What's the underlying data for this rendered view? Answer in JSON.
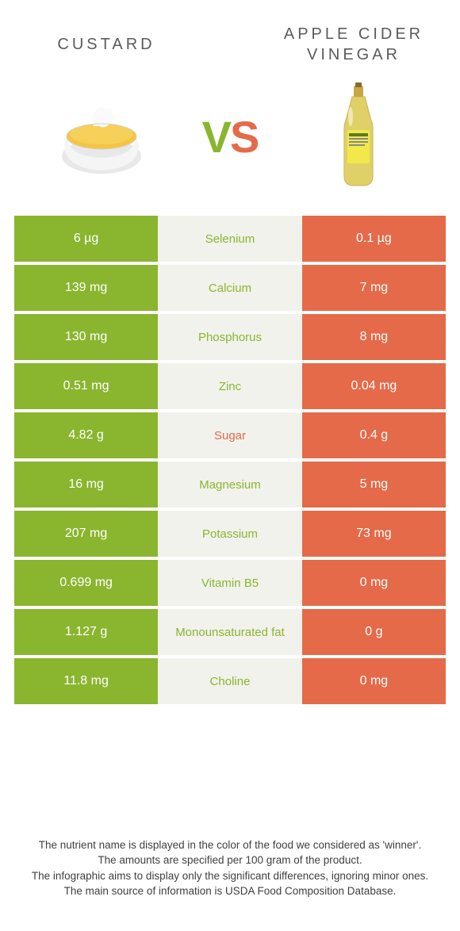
{
  "header": {
    "left_title": "Custard",
    "right_title": "Apple cider vinegar",
    "vs_v": "V",
    "vs_s": "S"
  },
  "colors": {
    "left_bg": "#8ab52f",
    "right_bg": "#e46a4a",
    "mid_bg": "#f2f2ec",
    "cell_text": "#ffffff",
    "title_text": "#5b5b5b",
    "footer_text": "#404040"
  },
  "table": {
    "rows": [
      {
        "left": "6 µg",
        "label": "Selenium",
        "right": "0.1 µg",
        "winner": "left"
      },
      {
        "left": "139 mg",
        "label": "Calcium",
        "right": "7 mg",
        "winner": "left"
      },
      {
        "left": "130 mg",
        "label": "Phosphorus",
        "right": "8 mg",
        "winner": "left"
      },
      {
        "left": "0.51 mg",
        "label": "Zinc",
        "right": "0.04 mg",
        "winner": "left"
      },
      {
        "left": "4.82 g",
        "label": "Sugar",
        "right": "0.4 g",
        "winner": "right"
      },
      {
        "left": "16 mg",
        "label": "Magnesium",
        "right": "5 mg",
        "winner": "left"
      },
      {
        "left": "207 mg",
        "label": "Potassium",
        "right": "73 mg",
        "winner": "left"
      },
      {
        "left": "0.699 mg",
        "label": "Vitamin B5",
        "right": "0 mg",
        "winner": "left"
      },
      {
        "left": "1.127 g",
        "label": "Monounsaturated fat",
        "right": "0 g",
        "winner": "left"
      },
      {
        "left": "11.8 mg",
        "label": "Choline",
        "right": "0 mg",
        "winner": "left"
      }
    ]
  },
  "footer": {
    "line1": "The nutrient name is displayed in the color of the food we considered as 'winner'.",
    "line2": "The amounts are specified per 100 gram of the product.",
    "line3": "The infographic aims to display only the significant differences, ignoring minor ones.",
    "line4": "The main source of information is USDA Food Composition Database."
  }
}
